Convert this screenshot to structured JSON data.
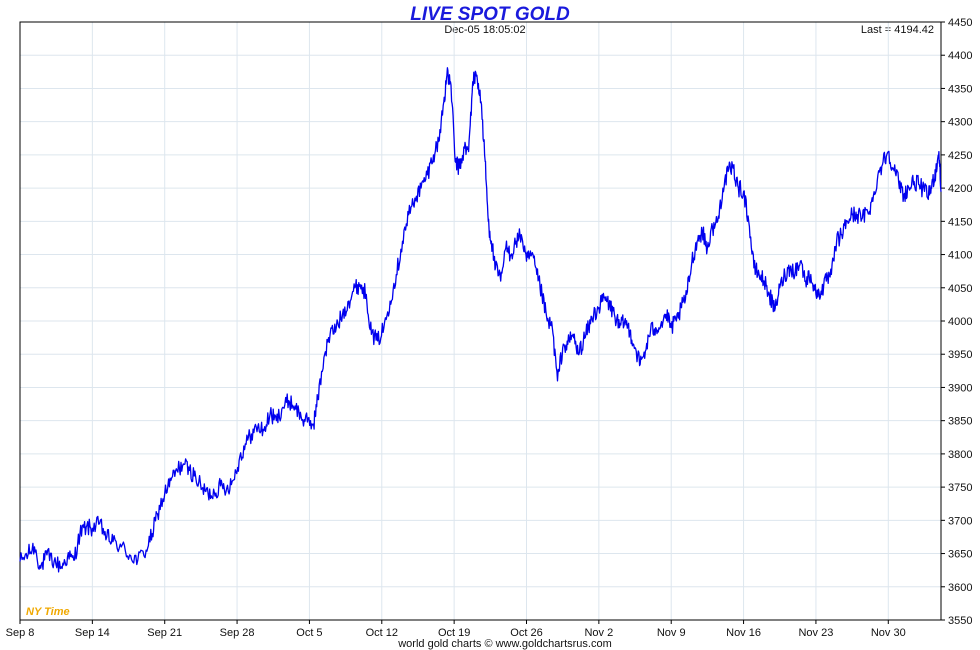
{
  "chart_data": {
    "type": "line",
    "title": "LIVE SPOT GOLD",
    "timestamp": "Dec-05  18:05:02",
    "last_label": "Last = 4194.42",
    "footer": "world gold charts © www.goldchartsrus.com",
    "timezone_label": "NY Time",
    "ylim": [
      3550,
      4450
    ],
    "y_ticks": [
      3550,
      3600,
      3650,
      3700,
      3750,
      3800,
      3850,
      3900,
      3950,
      4000,
      4050,
      4100,
      4150,
      4200,
      4250,
      4300,
      4350,
      4400,
      4450
    ],
    "x_ticks": [
      "Sep 8",
      "Sep 14",
      "Sep 21",
      "Sep 28",
      "Oct 5",
      "Oct 12",
      "Oct 19",
      "Oct 26",
      "Nov 2",
      "Nov 9",
      "Nov 16",
      "Nov 23",
      "Nov 30"
    ],
    "x_range_days": [
      0,
      89.1
    ],
    "grid": true,
    "series": [
      {
        "color": "#0000ee",
        "points": [
          [
            0,
            3638
          ],
          [
            0.8,
            3650
          ],
          [
            1.4,
            3660
          ],
          [
            2.0,
            3628
          ],
          [
            2.6,
            3648
          ],
          [
            3.3,
            3638
          ],
          [
            4.0,
            3630
          ],
          [
            4.6,
            3645
          ],
          [
            5.2,
            3640
          ],
          [
            5.8,
            3680
          ],
          [
            6.4,
            3690
          ],
          [
            7.0,
            3688
          ],
          [
            7.7,
            3695
          ],
          [
            8.4,
            3675
          ],
          [
            9.0,
            3668
          ],
          [
            9.8,
            3660
          ],
          [
            10.6,
            3648
          ],
          [
            11.4,
            3640
          ],
          [
            12.2,
            3655
          ],
          [
            12.8,
            3680
          ],
          [
            13.3,
            3710
          ],
          [
            14.0,
            3740
          ],
          [
            14.6,
            3760
          ],
          [
            15.2,
            3775
          ],
          [
            15.8,
            3785
          ],
          [
            16.4,
            3775
          ],
          [
            17.0,
            3765
          ],
          [
            17.6,
            3748
          ],
          [
            18.2,
            3740
          ],
          [
            18.8,
            3742
          ],
          [
            19.4,
            3752
          ],
          [
            20.0,
            3748
          ],
          [
            20.6,
            3760
          ],
          [
            21.2,
            3790
          ],
          [
            21.8,
            3815
          ],
          [
            22.4,
            3830
          ],
          [
            23.0,
            3840
          ],
          [
            23.6,
            3835
          ],
          [
            24.2,
            3860
          ],
          [
            24.8,
            3850
          ],
          [
            25.4,
            3870
          ],
          [
            26.0,
            3880
          ],
          [
            26.6,
            3872
          ],
          [
            27.2,
            3855
          ],
          [
            27.8,
            3848
          ],
          [
            28.4,
            3845
          ],
          [
            28.8,
            3882
          ],
          [
            29.4,
            3945
          ],
          [
            30.0,
            3980
          ],
          [
            30.6,
            3990
          ],
          [
            31.2,
            4010
          ],
          [
            31.8,
            4030
          ],
          [
            32.4,
            4050
          ],
          [
            32.9,
            4055
          ],
          [
            33.5,
            4040
          ],
          [
            34.0,
            3980
          ],
          [
            34.6,
            3970
          ],
          [
            35.2,
            3990
          ],
          [
            35.8,
            4030
          ],
          [
            36.4,
            4070
          ],
          [
            37.0,
            4120
          ],
          [
            37.6,
            4160
          ],
          [
            38.2,
            4185
          ],
          [
            38.8,
            4200
          ],
          [
            39.4,
            4220
          ],
          [
            40.0,
            4250
          ],
          [
            40.5,
            4270
          ],
          [
            41.0,
            4330
          ],
          [
            41.3,
            4370
          ],
          [
            41.7,
            4355
          ],
          [
            42.1,
            4240
          ],
          [
            42.5,
            4230
          ],
          [
            43.0,
            4260
          ],
          [
            43.4,
            4255
          ],
          [
            43.8,
            4360
          ],
          [
            44.2,
            4370
          ],
          [
            44.6,
            4330
          ],
          [
            45.0,
            4240
          ],
          [
            45.3,
            4150
          ],
          [
            45.6,
            4120
          ],
          [
            46.0,
            4080
          ],
          [
            46.5,
            4060
          ],
          [
            47.0,
            4110
          ],
          [
            47.5,
            4100
          ],
          [
            48.0,
            4120
          ],
          [
            48.5,
            4130
          ],
          [
            49.0,
            4090
          ],
          [
            49.5,
            4100
          ],
          [
            50.0,
            4070
          ],
          [
            50.5,
            4040
          ],
          [
            51.0,
            4000
          ],
          [
            51.5,
            3990
          ],
          [
            52.0,
            3910
          ],
          [
            52.5,
            3960
          ],
          [
            53.0,
            3965
          ],
          [
            53.5,
            3980
          ],
          [
            54.0,
            3950
          ],
          [
            54.5,
            3970
          ],
          [
            55.0,
            3990
          ],
          [
            55.5,
            4010
          ],
          [
            56.0,
            4020
          ],
          [
            56.5,
            4035
          ],
          [
            57.0,
            4025
          ],
          [
            57.5,
            4010
          ],
          [
            58.0,
            3990
          ],
          [
            58.5,
            4000
          ],
          [
            59.0,
            3985
          ],
          [
            59.5,
            3960
          ],
          [
            60.0,
            3935
          ],
          [
            60.5,
            3955
          ],
          [
            61.0,
            3985
          ],
          [
            61.5,
            3990
          ],
          [
            62.0,
            3995
          ],
          [
            62.5,
            4010
          ],
          [
            63.0,
            3990
          ],
          [
            63.5,
            4000
          ],
          [
            64.0,
            4020
          ],
          [
            64.5,
            4040
          ],
          [
            65.0,
            4090
          ],
          [
            65.5,
            4120
          ],
          [
            66.0,
            4135
          ],
          [
            66.5,
            4110
          ],
          [
            67.0,
            4140
          ],
          [
            67.5,
            4150
          ],
          [
            68.0,
            4200
          ],
          [
            68.5,
            4225
          ],
          [
            69.0,
            4230
          ],
          [
            69.5,
            4200
          ],
          [
            70.0,
            4195
          ],
          [
            70.5,
            4150
          ],
          [
            71.0,
            4080
          ],
          [
            71.5,
            4070
          ],
          [
            72.0,
            4060
          ],
          [
            72.5,
            4040
          ],
          [
            73.0,
            4015
          ],
          [
            73.5,
            4050
          ],
          [
            74.0,
            4070
          ],
          [
            74.5,
            4080
          ],
          [
            75.0,
            4075
          ],
          [
            75.5,
            4090
          ],
          [
            76.0,
            4060
          ],
          [
            76.5,
            4070
          ],
          [
            77.0,
            4040
          ],
          [
            77.5,
            4045
          ],
          [
            78.0,
            4060
          ],
          [
            78.5,
            4070
          ],
          [
            79.0,
            4120
          ],
          [
            79.5,
            4130
          ],
          [
            80.0,
            4150
          ],
          [
            80.5,
            4160
          ],
          [
            81.0,
            4160
          ],
          [
            81.5,
            4155
          ],
          [
            82.0,
            4165
          ],
          [
            82.5,
            4180
          ],
          [
            83.0,
            4220
          ],
          [
            83.5,
            4240
          ],
          [
            84.0,
            4255
          ],
          [
            84.5,
            4230
          ],
          [
            85.0,
            4210
          ],
          [
            85.5,
            4190
          ],
          [
            86.0,
            4200
          ],
          [
            86.5,
            4210
          ],
          [
            87.0,
            4205
          ],
          [
            87.5,
            4195
          ],
          [
            88.0,
            4190
          ],
          [
            88.3,
            4210
          ],
          [
            88.6,
            4225
          ],
          [
            88.9,
            4255
          ],
          [
            89.1,
            4194.42
          ]
        ]
      }
    ]
  }
}
